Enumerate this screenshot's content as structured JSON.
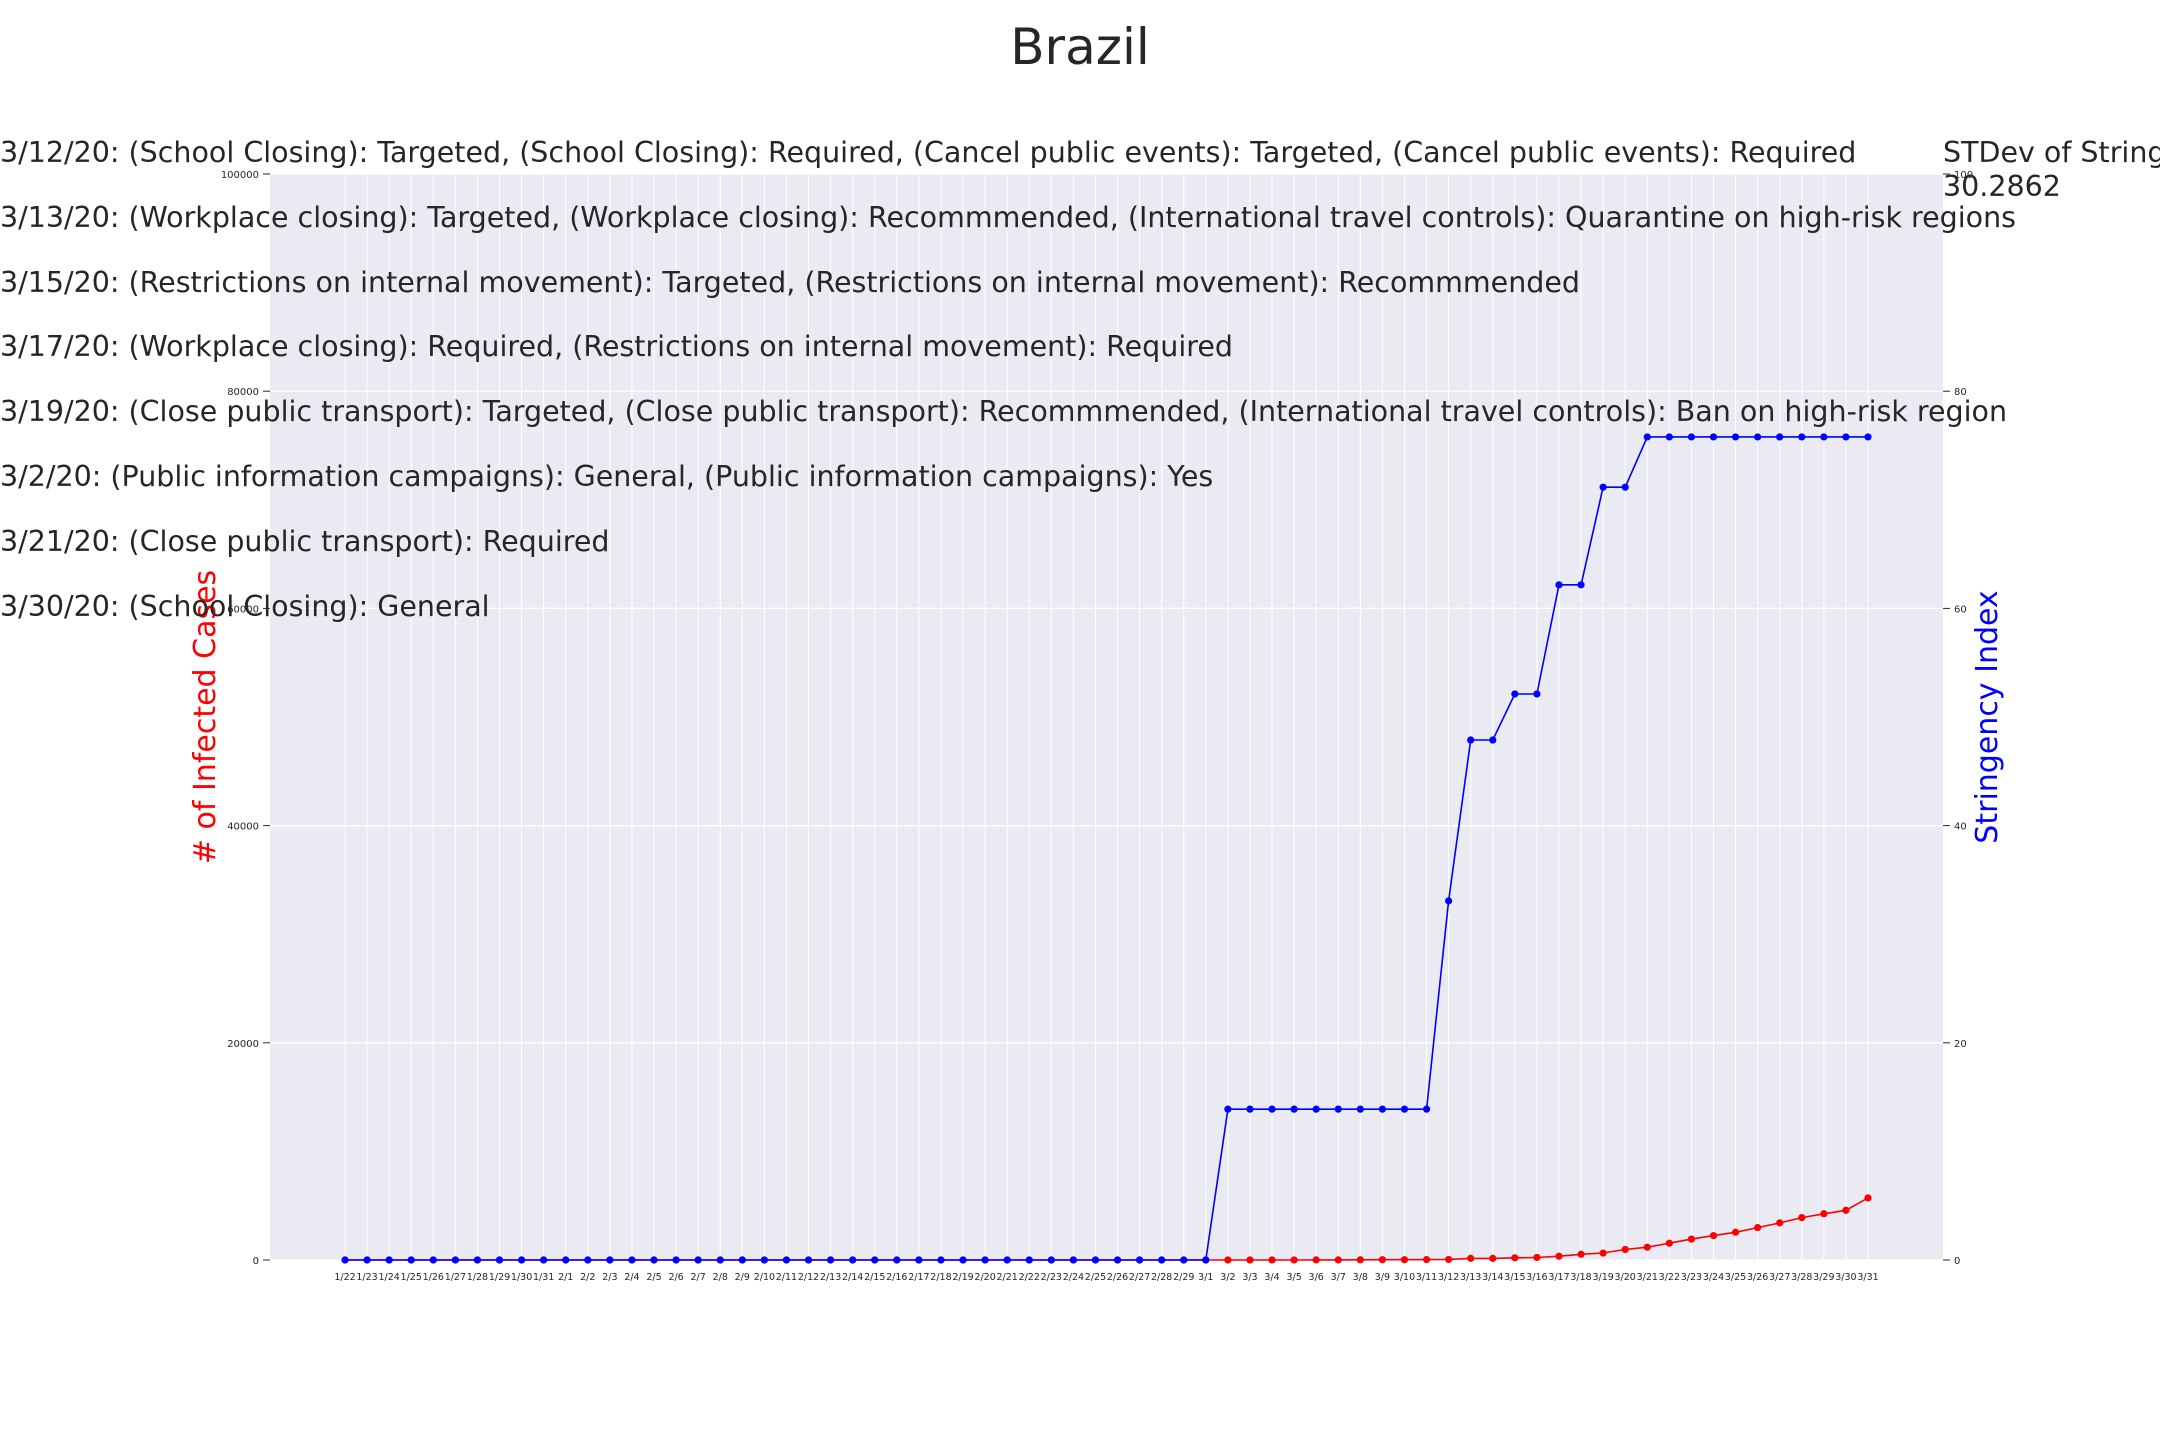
{
  "title": "Brazil",
  "annotations": [
    "3/12/20: (School Closing): Targeted, (School Closing): Required, (Cancel public events): Targeted, (Cancel public events): Required",
    "3/13/20: (Workplace closing): Targeted, (Workplace closing): Recommmended, (International travel controls): Quarantine on high-risk regions",
    "3/15/20: (Restrictions on internal movement): Targeted, (Restrictions on internal movement): Recommmended",
    "3/17/20: (Workplace closing): Required, (Restrictions on internal movement): Required",
    "3/19/20: (Close public transport): Targeted, (Close public transport): Recommmended, (International travel controls): Ban on high-risk region",
    "3/2/20: (Public information campaigns): General, (Public information campaigns): Yes",
    "3/21/20: (Close public transport): Required",
    "3/30/20: (School Closing): General"
  ],
  "stdev": {
    "label": "STDev of Stringe",
    "value": "30.2862"
  },
  "colors": {
    "cases": "#ff0000",
    "stringency": "#0000ff",
    "plot_background": "#eaeaf2",
    "grid": "#ffffff"
  },
  "chart_data": {
    "type": "line",
    "title": "Brazil",
    "ylabel": "# of Infected Cases",
    "y2label": "Stringency Index",
    "ylim": [
      0,
      100000
    ],
    "y2lim": [
      0,
      100
    ],
    "yticks": [
      "0",
      "20000",
      "40000",
      "60000",
      "80000",
      "100000"
    ],
    "y2ticks": [
      "0",
      "20",
      "40",
      "60",
      "80",
      "100"
    ],
    "grid": true,
    "categories": [
      "1/22",
      "1/23",
      "1/24",
      "1/25",
      "1/26",
      "1/27",
      "1/28",
      "1/29",
      "1/30",
      "1/31",
      "2/1",
      "2/2",
      "2/3",
      "2/4",
      "2/5",
      "2/6",
      "2/7",
      "2/8",
      "2/9",
      "2/10",
      "2/11",
      "2/12",
      "2/13",
      "2/14",
      "2/15",
      "2/16",
      "2/17",
      "2/18",
      "2/19",
      "2/20",
      "2/21",
      "2/22",
      "2/23",
      "2/24",
      "2/25",
      "2/26",
      "2/27",
      "2/28",
      "2/29",
      "3/1",
      "3/2",
      "3/3",
      "3/4",
      "3/5",
      "3/6",
      "3/7",
      "3/8",
      "3/9",
      "3/10",
      "3/11",
      "3/12",
      "3/13",
      "3/14",
      "3/15",
      "3/16",
      "3/17",
      "3/18",
      "3/19",
      "3/20",
      "3/21",
      "3/22",
      "3/23",
      "3/24",
      "3/25",
      "3/26",
      "3/27",
      "3/28",
      "3/29",
      "3/30",
      "3/31"
    ],
    "series": [
      {
        "axis": "left",
        "color": "#ff0000",
        "values": [
          0,
          0,
          0,
          0,
          0,
          0,
          0,
          0,
          0,
          0,
          0,
          0,
          0,
          0,
          0,
          0,
          0,
          0,
          0,
          0,
          0,
          0,
          0,
          0,
          0,
          0,
          0,
          0,
          0,
          0,
          0,
          0,
          0,
          0,
          0,
          1,
          1,
          1,
          2,
          2,
          2,
          2,
          4,
          4,
          13,
          13,
          20,
          25,
          31,
          38,
          52,
          151,
          151,
          200,
          234,
          346,
          529,
          640,
          970,
          1178,
          1546,
          1924,
          2247,
          2554,
          2985,
          3417,
          3904,
          4256,
          4579,
          5717
        ]
      },
      {
        "axis": "right",
        "color": "#0000ff",
        "values": [
          0,
          0,
          0,
          0,
          0,
          0,
          0,
          0,
          0,
          0,
          0,
          0,
          0,
          0,
          0,
          0,
          0,
          0,
          0,
          0,
          0,
          0,
          0,
          0,
          0,
          0,
          0,
          0,
          0,
          0,
          0,
          0,
          0,
          0,
          0,
          0,
          0,
          0,
          0,
          0,
          13.89,
          13.89,
          13.89,
          13.89,
          13.89,
          13.89,
          13.89,
          13.89,
          13.89,
          13.89,
          33.07,
          47.88,
          47.88,
          52.12,
          52.12,
          62.17,
          62.17,
          71.16,
          71.16,
          75.79,
          75.79,
          75.79,
          75.79,
          75.79,
          75.79,
          75.79,
          75.79,
          75.79,
          75.79,
          75.79
        ]
      }
    ]
  }
}
